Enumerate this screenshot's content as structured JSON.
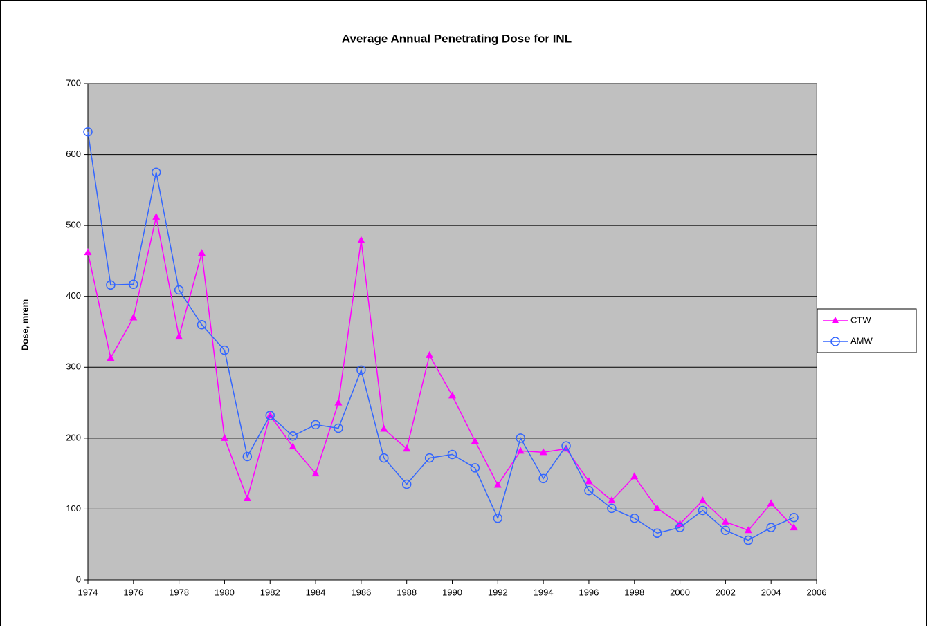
{
  "chart_data": {
    "type": "line",
    "title": "Average Annual Penetrating Dose for INL",
    "y_label": "Dose, mrem",
    "x": [
      1974,
      1975,
      1976,
      1977,
      1978,
      1979,
      1980,
      1981,
      1982,
      1983,
      1984,
      1985,
      1986,
      1987,
      1988,
      1989,
      1990,
      1991,
      1992,
      1993,
      1994,
      1995,
      1996,
      1997,
      1998,
      1999,
      2000,
      2001,
      2002,
      2003,
      2004,
      2005
    ],
    "series": [
      {
        "name": "CTW",
        "color": "#ff00ff",
        "marker": "triangle",
        "values": [
          462,
          313,
          370,
          512,
          343,
          461,
          200,
          115,
          232,
          188,
          150,
          250,
          479,
          213,
          185,
          317,
          260,
          196,
          134,
          182,
          180,
          185,
          139,
          112,
          146,
          101,
          79,
          112,
          82,
          70,
          108,
          74
        ]
      },
      {
        "name": "AMW",
        "color": "#3366ff",
        "marker": "circle",
        "values": [
          632,
          416,
          417,
          575,
          409,
          360,
          324,
          174,
          232,
          203,
          219,
          214,
          296,
          172,
          135,
          172,
          177,
          158,
          87,
          200,
          143,
          189,
          126,
          101,
          87,
          66,
          74,
          98,
          70,
          56,
          74,
          88
        ]
      }
    ],
    "xlim": [
      1974,
      2006
    ],
    "xticks": [
      1974,
      1976,
      1978,
      1980,
      1982,
      1984,
      1986,
      1988,
      1990,
      1992,
      1994,
      1996,
      1998,
      2000,
      2002,
      2004,
      2006
    ],
    "ylim": [
      0,
      700
    ],
    "yticks": [
      0,
      100,
      200,
      300,
      400,
      500,
      600,
      700
    ],
    "grid": true,
    "plot_background": "#c0c0c0",
    "legend": "right"
  }
}
